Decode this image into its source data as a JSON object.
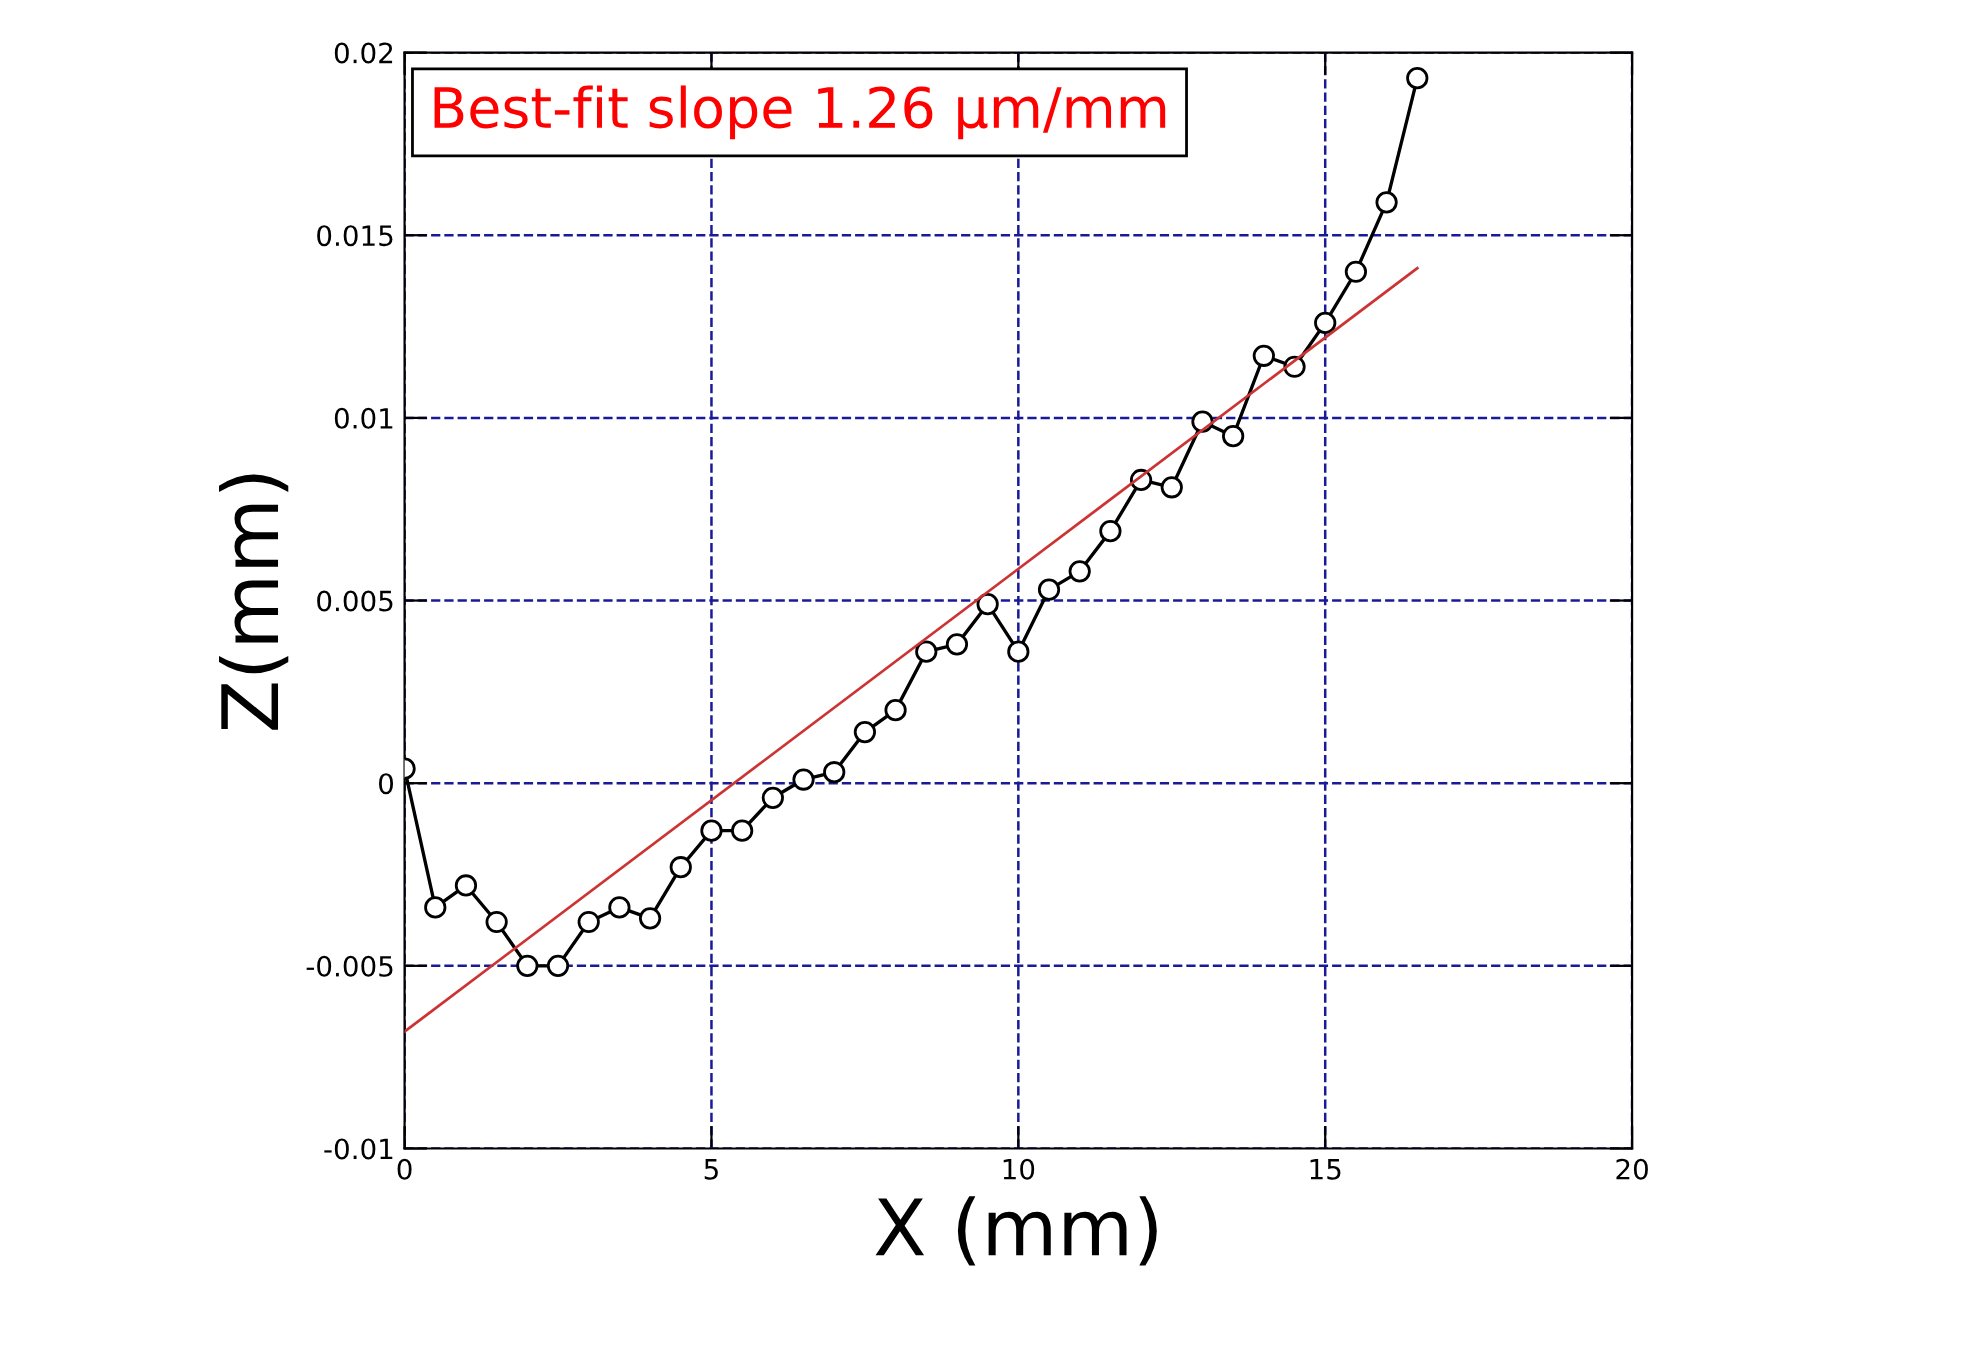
{
  "chart_data": {
    "type": "line",
    "xlabel": "X (mm)",
    "ylabel": "Z(mm)",
    "annotations": [
      "Best-fit slope 1.26 µm/mm"
    ],
    "xlim": [
      0,
      20
    ],
    "xticks": [
      0,
      5,
      10,
      15,
      20
    ],
    "ylim": [
      -0.01,
      0.02
    ],
    "yticks": [
      -0.01,
      -0.005,
      0,
      0.005,
      0.01,
      0.015,
      0.02
    ],
    "grid": true,
    "legend": false,
    "series": [
      {
        "marker": "circle",
        "line_style": "solid",
        "color": "#000000",
        "x": [
          0,
          0.5,
          1,
          1.5,
          2,
          2.5,
          3,
          3.5,
          4,
          4.5,
          5,
          5.5,
          6,
          6.5,
          7,
          7.5,
          8,
          8.5,
          9,
          9.5,
          10,
          10.5,
          11,
          11.5,
          12,
          12.5,
          13,
          13.5,
          14,
          14.5,
          15,
          15.5,
          16,
          16.5
        ],
        "values": [
          0.0004,
          -0.0034,
          -0.0028,
          -0.0038,
          -0.005,
          -0.005,
          -0.0038,
          -0.0034,
          -0.0037,
          -0.0023,
          -0.0013,
          -0.0013,
          -0.0004,
          0.0001,
          0.0003,
          0.0014,
          0.002,
          0.0036,
          0.0038,
          0.0049,
          0.0036,
          0.0053,
          0.0058,
          0.0069,
          0.0083,
          0.0081,
          0.0099,
          0.0095,
          0.0117,
          0.0114,
          0.0126,
          0.014,
          0.0159,
          0.0193
        ]
      },
      {
        "marker": "none",
        "line_style": "solid",
        "color": "#cc3333",
        "x": [
          0,
          16.5
        ],
        "values": [
          -0.0068,
          0.0141
        ]
      }
    ]
  }
}
